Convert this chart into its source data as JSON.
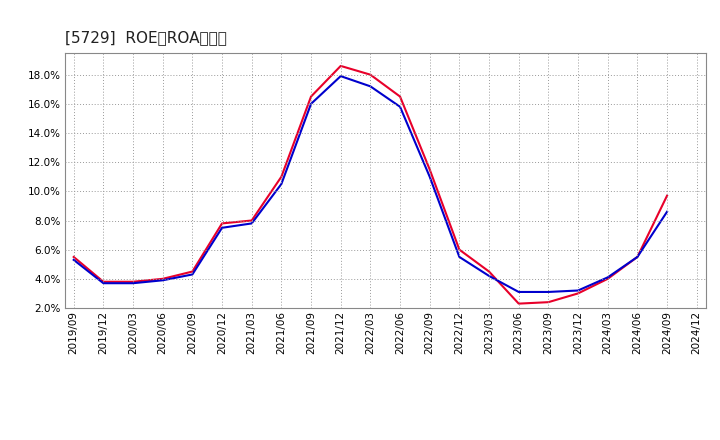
{
  "title": "[5729]  ROE、ROAの推移",
  "x_labels": [
    "2019/09",
    "2019/12",
    "2020/03",
    "2020/06",
    "2020/09",
    "2020/12",
    "2021/03",
    "2021/06",
    "2021/09",
    "2021/12",
    "2022/03",
    "2022/06",
    "2022/09",
    "2022/12",
    "2023/03",
    "2023/06",
    "2023/09",
    "2023/12",
    "2024/03",
    "2024/06",
    "2024/09",
    "2024/12"
  ],
  "roe": [
    5.5,
    3.8,
    3.8,
    4.0,
    4.5,
    7.8,
    8.0,
    11.0,
    16.5,
    18.6,
    18.0,
    16.5,
    11.5,
    6.0,
    4.5,
    2.3,
    2.4,
    3.0,
    4.0,
    5.5,
    9.7,
    null
  ],
  "roa": [
    5.3,
    3.7,
    3.7,
    3.9,
    4.3,
    7.5,
    7.8,
    10.5,
    16.0,
    17.9,
    17.2,
    15.8,
    11.0,
    5.5,
    4.2,
    3.1,
    3.1,
    3.2,
    4.1,
    5.5,
    8.6,
    null
  ],
  "roe_color": "#e8002a",
  "roa_color": "#0000cd",
  "ylim": [
    2.0,
    19.5
  ],
  "yticks": [
    2.0,
    4.0,
    6.0,
    8.0,
    10.0,
    12.0,
    14.0,
    16.0,
    18.0
  ],
  "bg_color": "#ffffff",
  "plot_bg_color": "#ffffff",
  "grid_color": "#aaaaaa",
  "title_fontsize": 11,
  "tick_fontsize": 7.5,
  "legend_fontsize": 9
}
